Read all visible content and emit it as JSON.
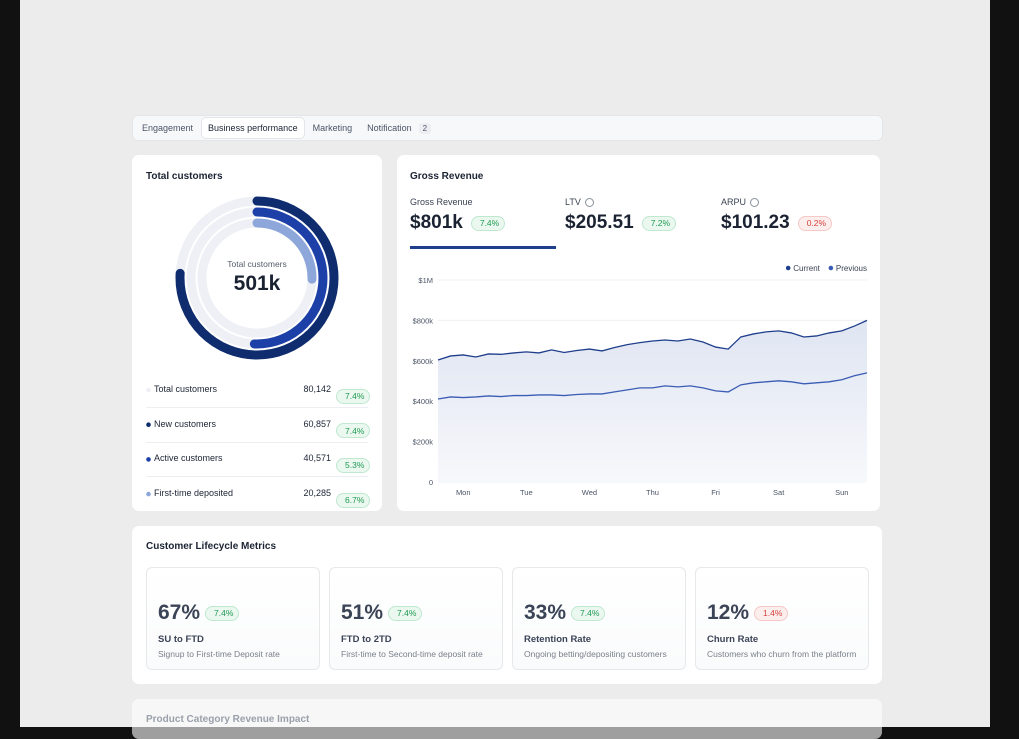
{
  "tabs": [
    {
      "label": "Engagement"
    },
    {
      "label": "Business performance",
      "active": true
    },
    {
      "label": "Marketing"
    },
    {
      "label": "Notification",
      "count": "2"
    }
  ],
  "total_customers": {
    "type": "radial",
    "title": "Total customers",
    "center_label": "Total customers",
    "center_value": "501k",
    "categories": [
      "Total customers",
      "New customers",
      "Active customers",
      "First-time deposited"
    ],
    "values": [
      80142,
      60857,
      40571,
      20285
    ],
    "value_labels": [
      "80,142",
      "60,857",
      "40,571",
      "20,285"
    ],
    "changes": [
      "7.4%",
      "7.4%",
      "5.3%",
      "6.7%"
    ],
    "colors": [
      "#eef0f5",
      "#0e2c6e",
      "#1d40a8",
      "#8ea7da"
    ]
  },
  "gross_revenue": {
    "title": "Gross Revenue",
    "metrics": [
      {
        "label": "Gross Revenue",
        "value": "$801k",
        "change": "7.4%",
        "trend": "up",
        "active": true
      },
      {
        "label": "LTV",
        "value": "$205.51",
        "change": "7.2%",
        "trend": "up",
        "info": true
      },
      {
        "label": "ARPU",
        "value": "$101.23",
        "change": "0.2%",
        "trend": "down",
        "info": true
      }
    ],
    "chart": {
      "type": "line",
      "x": [
        -0.4,
        -0.2,
        0,
        0.2,
        0.4,
        0.6,
        0.8,
        1,
        1.2,
        1.4,
        1.6,
        1.8,
        2,
        2.2,
        2.4,
        2.6,
        2.8,
        3,
        3.2,
        3.4,
        3.6,
        3.8,
        4,
        4.2,
        4.4,
        4.6,
        4.8,
        5,
        5.2,
        5.4,
        5.6,
        5.8,
        6,
        6.2,
        6.4
      ],
      "xlim": [
        -0.4,
        6.4
      ],
      "xticks": [
        {
          "value": 0,
          "label": "Mon"
        },
        {
          "value": 1,
          "label": "Tue"
        },
        {
          "value": 2,
          "label": "Wed"
        },
        {
          "value": 3,
          "label": "Thu"
        },
        {
          "value": 4,
          "label": "Fri"
        },
        {
          "value": 5,
          "label": "Sat"
        },
        {
          "value": 6,
          "label": "Sun"
        }
      ],
      "ylim": [
        0,
        1000
      ],
      "yticks": [
        0,
        {
          "value": 200,
          "label": "$200k"
        },
        {
          "value": 400,
          "label": "$400k"
        },
        {
          "value": 600,
          "label": "$600k"
        },
        {
          "value": 800,
          "label": "$800k"
        },
        {
          "value": 1000,
          "label": "$1M"
        }
      ],
      "grid": true,
      "legend": "top-right",
      "series": [
        {
          "name": "Current",
          "color": "#1f3f8c",
          "area": true,
          "values": [
            604,
            624,
            629,
            619,
            634,
            632,
            639,
            644,
            639,
            654,
            641,
            651,
            658,
            649,
            666,
            680,
            690,
            698,
            703,
            698,
            708,
            693,
            668,
            658,
            718,
            733,
            743,
            748,
            738,
            718,
            723,
            738,
            748,
            772,
            800
          ]
        },
        {
          "name": "Previous",
          "color": "#3b5cb5",
          "values": [
            411,
            421,
            418,
            421,
            426,
            423,
            428,
            428,
            431,
            431,
            428,
            433,
            436,
            436,
            446,
            456,
            466,
            466,
            476,
            471,
            476,
            466,
            451,
            446,
            481,
            491,
            496,
            501,
            496,
            486,
            491,
            496,
            506,
            526,
            540
          ]
        }
      ]
    }
  },
  "lifecycle": {
    "title": "Customer Lifecycle Metrics",
    "cards": [
      {
        "value": "67%",
        "change": "7.4%",
        "trend": "up",
        "title": "SU to FTD",
        "subtitle": "Signup to First-time Deposit rate"
      },
      {
        "value": "51%",
        "change": "7.4%",
        "trend": "up",
        "title": "FTD to 2TD",
        "subtitle": "First-time to Second-time deposit rate"
      },
      {
        "value": "33%",
        "change": "7.4%",
        "trend": "up",
        "title": "Retention Rate",
        "subtitle": "Ongoing betting/depositing customers"
      },
      {
        "value": "12%",
        "change": "1.4%",
        "trend": "down",
        "title": "Churn Rate",
        "subtitle": "Customers who churn from the platform"
      }
    ]
  },
  "next_section": {
    "title": "Product Category Revenue Impact"
  }
}
